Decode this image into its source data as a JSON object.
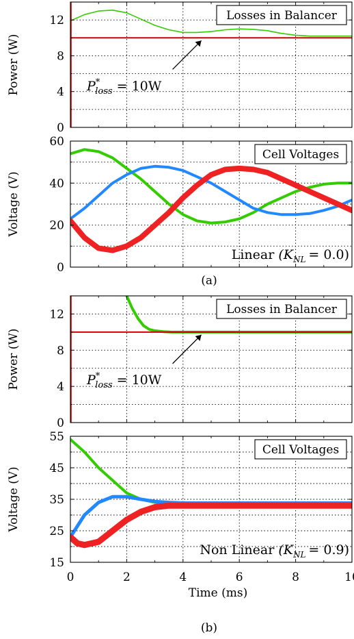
{
  "colors": {
    "green": "#33cc00",
    "blue": "#2288ff",
    "red": "#ee2222",
    "darkred": "#cc0000"
  },
  "chart_data": [
    {
      "type": "line",
      "panel": "(a) top",
      "box_label": "Losses in Balancer",
      "ylabel": "Power (W)",
      "xlim": [
        0,
        10
      ],
      "ylim": [
        0,
        14
      ],
      "yticks": [
        0,
        4,
        8,
        12
      ],
      "annotation": {
        "text_main": "P",
        "text_sup": "*",
        "text_sub": "loss",
        "text_tail": "= 10W",
        "arrow_to": [
          4.65,
          10
        ]
      },
      "series": [
        {
          "color": "green",
          "width": 1.6,
          "x": [
            0,
            0.5,
            1,
            1.5,
            2,
            2.5,
            3,
            3.5,
            4,
            4.5,
            5,
            5.5,
            6,
            6.5,
            7,
            7.5,
            8,
            8.5,
            9,
            9.5,
            10
          ],
          "y": [
            11.9,
            12.6,
            13.0,
            13.1,
            12.8,
            12.1,
            11.4,
            10.9,
            10.6,
            10.6,
            10.7,
            10.9,
            11.0,
            10.95,
            10.8,
            10.5,
            10.3,
            10.2,
            10.2,
            10.2,
            10.2
          ]
        },
        {
          "color": "darkred",
          "width": 2,
          "x": [
            0,
            10
          ],
          "y": [
            10,
            10
          ]
        }
      ]
    },
    {
      "type": "line",
      "panel": "(a) bottom",
      "box_label": "Cell Voltages",
      "ylabel": "Voltage (V)",
      "xlim": [
        0,
        10
      ],
      "ylim": [
        0,
        60
      ],
      "yticks": [
        0,
        20,
        40,
        60
      ],
      "caption_main": "Linear",
      "caption_param": "(K",
      "caption_sub": "NL",
      "caption_tail": "= 0.0)",
      "series": [
        {
          "color": "green",
          "width": 4,
          "x": [
            0,
            0.5,
            1,
            1.5,
            2,
            2.5,
            3,
            3.5,
            4,
            4.5,
            5,
            5.5,
            6,
            6.5,
            7,
            7.5,
            8,
            8.5,
            9,
            9.5,
            10
          ],
          "y": [
            54,
            56,
            55,
            52,
            47,
            42,
            36,
            30,
            25,
            22,
            21,
            21.5,
            23,
            26,
            30,
            33,
            36,
            38,
            39.5,
            40,
            40
          ]
        },
        {
          "color": "blue",
          "width": 4,
          "x": [
            0,
            0.5,
            1,
            1.5,
            2,
            2.5,
            3,
            3.5,
            4,
            4.5,
            5,
            5.5,
            6,
            6.5,
            7,
            7.5,
            8,
            8.5,
            9,
            9.5,
            10
          ],
          "y": [
            23,
            28,
            34,
            40,
            44,
            47,
            48,
            47.5,
            46,
            43,
            40,
            36,
            32,
            28,
            26,
            25,
            25,
            25.5,
            27,
            29,
            32
          ]
        },
        {
          "color": "red",
          "width": 8,
          "x": [
            0,
            0.5,
            1,
            1.5,
            2,
            2.5,
            3,
            3.5,
            4,
            4.5,
            5,
            5.5,
            6,
            6.5,
            7,
            7.5,
            8,
            8.5,
            9,
            9.5,
            10
          ],
          "y": [
            22,
            14,
            9,
            8,
            10,
            14,
            20,
            26,
            33,
            39,
            44,
            46.5,
            47,
            46.5,
            45,
            42,
            39,
            36,
            33,
            30,
            27
          ]
        }
      ]
    },
    {
      "type": "line",
      "panel": "(b) top",
      "box_label": "Losses in Balancer",
      "ylabel": "Power (W)",
      "xlim": [
        0,
        10
      ],
      "ylim": [
        0,
        14
      ],
      "yticks": [
        0,
        4,
        8,
        12
      ],
      "annotation": {
        "text_main": "P",
        "text_sup": "*",
        "text_sub": "loss",
        "text_tail": "= 10W",
        "arrow_to": [
          4.65,
          10
        ]
      },
      "series": [
        {
          "color": "green",
          "width": 4,
          "x": [
            2,
            2.2,
            2.4,
            2.6,
            2.8,
            3.0,
            3.3,
            3.6,
            4,
            5,
            10
          ],
          "y": [
            14,
            12.6,
            11.5,
            10.7,
            10.3,
            10.15,
            10.05,
            10.0,
            10.0,
            10.0,
            10.0
          ]
        },
        {
          "color": "darkred",
          "width": 2,
          "x": [
            0,
            10
          ],
          "y": [
            10,
            10
          ]
        }
      ]
    },
    {
      "type": "line",
      "panel": "(b) bottom",
      "box_label": "Cell Voltages",
      "ylabel": "Voltage (V)",
      "xlabel": "Time (ms)",
      "xlim": [
        0,
        10
      ],
      "ylim": [
        15,
        55
      ],
      "xticks": [
        0,
        2,
        4,
        6,
        8,
        10
      ],
      "yticks": [
        15,
        25,
        35,
        45,
        55
      ],
      "caption_main": "Non Linear",
      "caption_param": "(K",
      "caption_sub": "NL",
      "caption_tail": "= 0.9)",
      "series": [
        {
          "color": "green",
          "width": 4,
          "x": [
            0,
            0.5,
            1,
            1.5,
            2,
            2.5,
            3,
            3.5,
            4,
            5,
            6,
            7,
            8,
            9,
            10
          ],
          "y": [
            54,
            50,
            45,
            41,
            37,
            35,
            34,
            33.6,
            33.5,
            33.5,
            33.5,
            33.5,
            33.5,
            33.5,
            33.5
          ]
        },
        {
          "color": "blue",
          "width": 5,
          "x": [
            0,
            0.5,
            1,
            1.5,
            2,
            2.5,
            3,
            3.5,
            4,
            5,
            6,
            7,
            8,
            9,
            10
          ],
          "y": [
            23,
            30,
            34,
            35.8,
            35.8,
            35.0,
            34.3,
            34.0,
            33.8,
            33.8,
            33.8,
            33.8,
            33.8,
            33.8,
            33.8
          ]
        },
        {
          "color": "red",
          "width": 9,
          "x": [
            0,
            0.25,
            0.5,
            1,
            1.5,
            2,
            2.5,
            3,
            3.5,
            4,
            5,
            6,
            7,
            8,
            9,
            10
          ],
          "y": [
            23,
            21.0,
            20.5,
            21.5,
            25,
            28.5,
            31,
            32.5,
            33.0,
            33.0,
            33.0,
            33.0,
            33.0,
            33.0,
            33.0,
            33.0
          ]
        }
      ]
    }
  ],
  "captions": {
    "a": "(a)",
    "b": "(b)"
  }
}
